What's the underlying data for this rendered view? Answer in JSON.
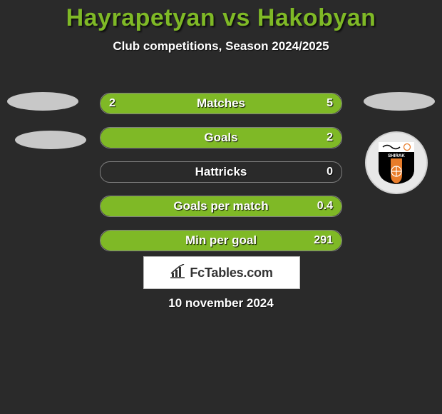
{
  "title_color": "#7fb926",
  "player1": "Hayrapetyan",
  "vs": "vs",
  "player2": "Hakobyan",
  "subtitle": "Club competitions, Season 2024/2025",
  "bar_fill_color": "#7fb926",
  "bar_border_color": "#808080",
  "bars": [
    {
      "label": "Matches",
      "left": "2",
      "right": "5",
      "left_pct": 28,
      "right_pct": 72
    },
    {
      "label": "Goals",
      "left": "",
      "right": "2",
      "left_pct": 0,
      "right_pct": 100
    },
    {
      "label": "Hattricks",
      "left": "",
      "right": "0",
      "left_pct": 0,
      "right_pct": 0
    },
    {
      "label": "Goals per match",
      "left": "",
      "right": "0.4",
      "left_pct": 0,
      "right_pct": 100
    },
    {
      "label": "Min per goal",
      "left": "",
      "right": "291",
      "left_pct": 0,
      "right_pct": 100
    }
  ],
  "brand_text": "FcTables.com",
  "date_text": "10 november 2024",
  "badge": {
    "text": "SHIRAK",
    "stripe_color": "#e87c2a",
    "bg_color": "#000000",
    "text_color": "#ffffff"
  }
}
